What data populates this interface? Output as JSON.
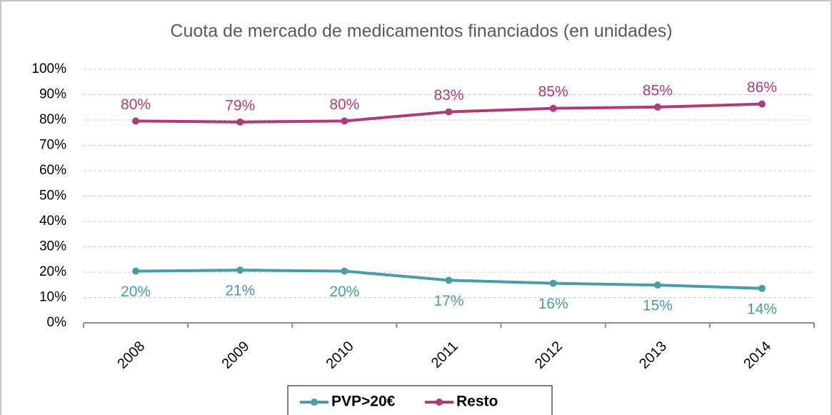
{
  "chart_data": {
    "type": "line",
    "title": "Cuota de mercado de medicamentos financiados (en unidades)",
    "categories": [
      "2008",
      "2009",
      "2010",
      "2011",
      "2012",
      "2013",
      "2014"
    ],
    "series": [
      {
        "name": "PVP>20€",
        "color": "#4a9ca8",
        "values": [
          20.4,
          20.8,
          20.4,
          16.8,
          15.6,
          14.9,
          13.6
        ],
        "value_labels": [
          "20%",
          "21%",
          "20%",
          "17%",
          "16%",
          "15%",
          "14%"
        ]
      },
      {
        "name": "Resto",
        "color": "#b03a7a",
        "values": [
          79.6,
          79.2,
          79.6,
          83.2,
          84.6,
          85.1,
          86.3
        ],
        "value_labels": [
          "80%",
          "79%",
          "80%",
          "83%",
          "85%",
          "85%",
          "86%"
        ]
      }
    ],
    "ylim": [
      0,
      100
    ],
    "yticks": [
      {
        "value": 0,
        "label": "0%"
      },
      {
        "value": 10,
        "label": "10%"
      },
      {
        "value": 20,
        "label": "20%"
      },
      {
        "value": 30,
        "label": "30%"
      },
      {
        "value": 40,
        "label": "40%"
      },
      {
        "value": 50,
        "label": "50%"
      },
      {
        "value": 60,
        "label": "60%"
      },
      {
        "value": 70,
        "label": "70%"
      },
      {
        "value": 80,
        "label": "80%"
      },
      {
        "value": 90,
        "label": "90%"
      },
      {
        "value": 100,
        "label": "100%"
      }
    ],
    "grid": true
  }
}
